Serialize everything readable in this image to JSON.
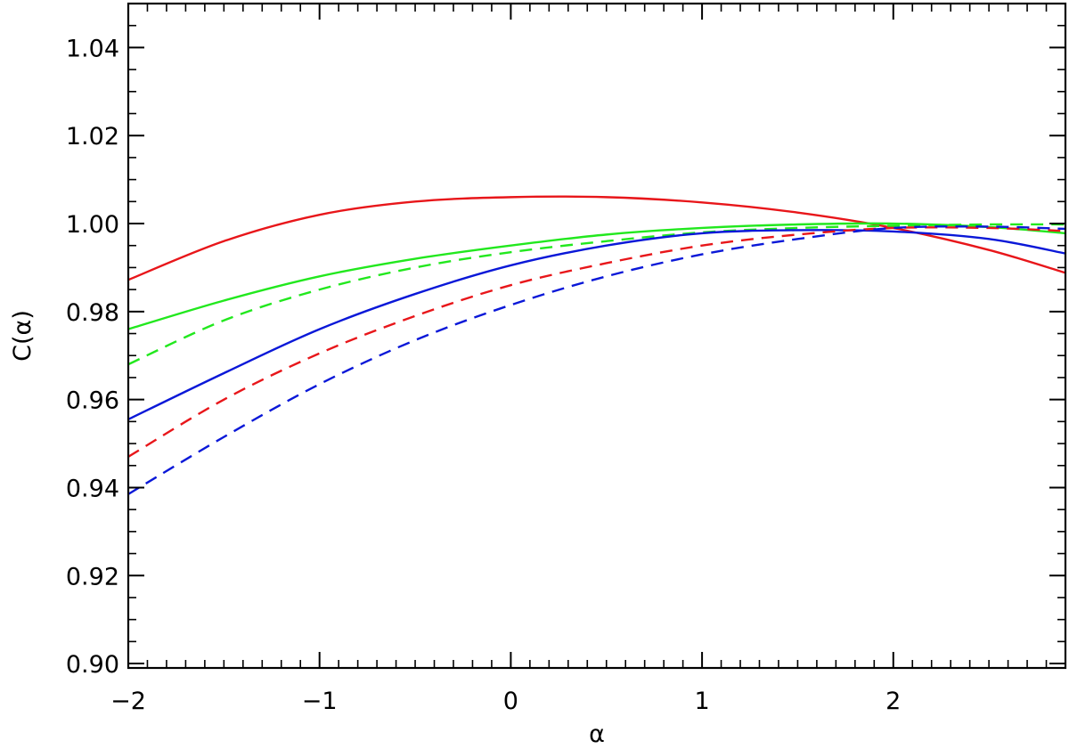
{
  "chart_data": {
    "type": "line",
    "title": "",
    "xlabel": "α",
    "ylabel": "C(α)",
    "xlim": [
      -2,
      2.9
    ],
    "ylim": [
      0.899,
      1.05
    ],
    "x_ticks": [
      -2,
      -1,
      0,
      1,
      2
    ],
    "x_tick_labels": [
      "−2",
      "−1",
      "0",
      "1",
      "2"
    ],
    "y_ticks": [
      0.9,
      0.92,
      0.94,
      0.96,
      0.98,
      1.0,
      1.02,
      1.04
    ],
    "y_tick_labels": [
      "0.90",
      "0.92",
      "0.94",
      "0.96",
      "0.98",
      "1.00",
      "1.02",
      "1.04"
    ],
    "grid": false,
    "series": [
      {
        "color": "#e8161a",
        "dash": false,
        "x": [
          -2.0,
          -1.5,
          -1.0,
          -0.5,
          0.0,
          0.5,
          1.0,
          1.5,
          2.0,
          2.5,
          2.9
        ],
        "y": [
          0.9872,
          0.996,
          1.002,
          1.005,
          1.006,
          1.006,
          1.0048,
          1.0025,
          0.999,
          0.994,
          0.9888
        ]
      },
      {
        "color": "#22e81e",
        "dash": false,
        "x": [
          -2.0,
          -1.5,
          -1.0,
          -0.5,
          0.0,
          0.5,
          1.0,
          1.5,
          2.0,
          2.5,
          2.9
        ],
        "y": [
          0.976,
          0.9825,
          0.988,
          0.992,
          0.995,
          0.9975,
          0.999,
          0.9998,
          1.0,
          0.9992,
          0.9978
        ]
      },
      {
        "color": "#22e81e",
        "dash": true,
        "x": [
          -2.0,
          -1.5,
          -1.0,
          -0.5,
          0.0,
          0.5,
          1.0,
          1.5,
          2.0,
          2.5,
          2.9
        ],
        "y": [
          0.968,
          0.978,
          0.985,
          0.99,
          0.9935,
          0.996,
          0.998,
          0.999,
          0.9995,
          0.9998,
          0.9998
        ]
      },
      {
        "color": "#0a18d8",
        "dash": false,
        "x": [
          -2.0,
          -1.5,
          -1.0,
          -0.5,
          0.0,
          0.5,
          1.0,
          1.5,
          2.0,
          2.5,
          2.9
        ],
        "y": [
          0.9555,
          0.966,
          0.976,
          0.984,
          0.9905,
          0.995,
          0.9978,
          0.9985,
          0.9982,
          0.9965,
          0.9932
        ]
      },
      {
        "color": "#e8161a",
        "dash": true,
        "x": [
          -2.0,
          -1.5,
          -1.0,
          -0.5,
          0.0,
          0.5,
          1.0,
          1.5,
          2.0,
          2.5,
          2.9
        ],
        "y": [
          0.947,
          0.96,
          0.9705,
          0.979,
          0.986,
          0.991,
          0.995,
          0.9975,
          0.999,
          0.999,
          0.9983
        ]
      },
      {
        "color": "#0a18d8",
        "dash": true,
        "x": [
          -2.0,
          -1.5,
          -1.0,
          -0.5,
          0.0,
          0.5,
          1.0,
          1.5,
          2.0,
          2.5,
          2.9
        ],
        "y": [
          0.9385,
          0.9515,
          0.9635,
          0.9735,
          0.9815,
          0.988,
          0.993,
          0.9965,
          0.999,
          0.9993,
          0.9988
        ]
      }
    ]
  }
}
